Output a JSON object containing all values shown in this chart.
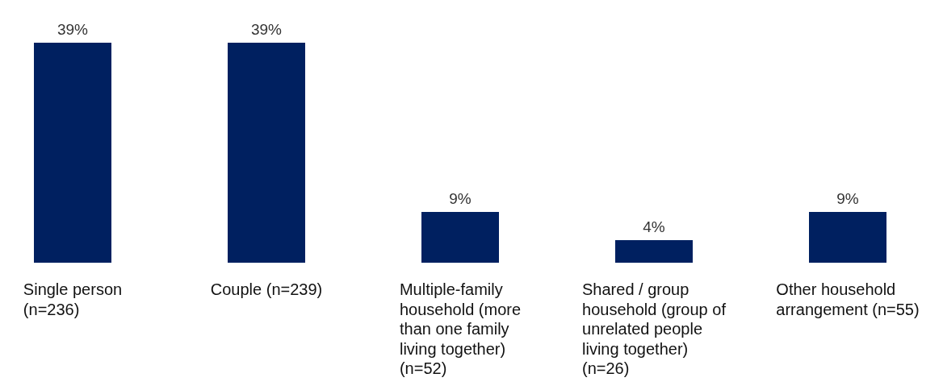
{
  "chart_data": {
    "type": "bar",
    "categories": [
      "Single person (n=236)",
      "Couple (n=239)",
      "Multiple-family household (more than one family living together) (n=52)",
      "Shared / group household (group of unrelated people living together) (n=26)",
      "Other household arrangement (n=55)"
    ],
    "values": [
      39,
      39,
      9,
      4,
      9
    ],
    "value_labels": [
      "39%",
      "39%",
      "9%",
      "4%",
      "9%"
    ],
    "color": "#002060"
  }
}
